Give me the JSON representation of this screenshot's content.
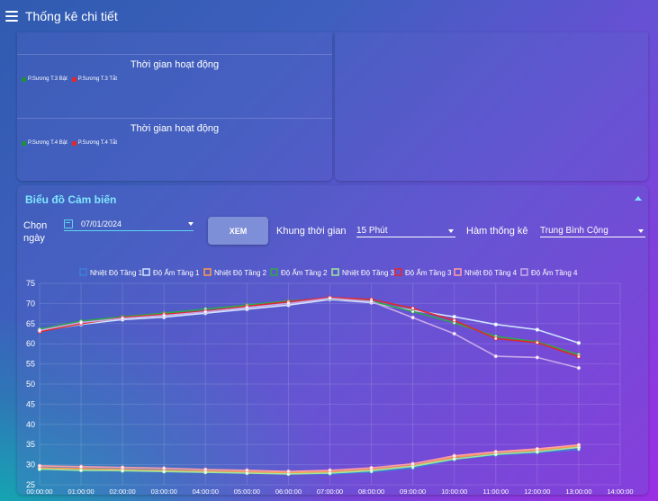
{
  "header": {
    "title": "Thống kê chi tiết",
    "menu_icon": "menu-icon"
  },
  "activity_charts": [
    {
      "title": "Thời gian hoạt động",
      "legend": [
        {
          "label": "P.Sương T.3 Bật",
          "color": "#1f8f3a"
        },
        {
          "label": "P.Sương T.3 Tắt",
          "color": "#e0282e"
        }
      ]
    },
    {
      "title": "Thời gian hoạt động",
      "legend": [
        {
          "label": "P.Sương T.4 Bật",
          "color": "#1f8f3a"
        },
        {
          "label": "P.Sương T.4 Tắt",
          "color": "#e0282e"
        }
      ]
    }
  ],
  "sensor_panel": {
    "title": "Biểu đồ Cảm biến",
    "date_label_line1": "Chọn",
    "date_label_line2": "ngày",
    "date_value": "07/01/2024",
    "view_button": "XEM",
    "timeframe_label": "Khung thời gian",
    "timeframe_value": "15 Phút",
    "function_label": "Hàm thống kê",
    "function_value": "Trung Bình Cộng"
  },
  "chart_data": {
    "type": "line",
    "x": [
      "00:00:00",
      "01:00:00",
      "02:00:00",
      "03:00:00",
      "04:00:00",
      "05:00:00",
      "06:00:00",
      "07:00:00",
      "08:00:00",
      "09:00:00",
      "10:00:00",
      "11:00:00",
      "12:00:00",
      "13:00:00",
      "14:00:00"
    ],
    "xlim": [
      0,
      14
    ],
    "ylim": [
      25,
      75
    ],
    "yticks": [
      25,
      30,
      35,
      40,
      45,
      50,
      55,
      60,
      65,
      70,
      75
    ],
    "grid": true,
    "legend_position": "top",
    "series": [
      {
        "name": "Nhiệt Độ Tầng 1",
        "color": "#3d7fd9",
        "points": [
          [
            0,
            29.5
          ],
          [
            1,
            29.2
          ],
          [
            2,
            29.0
          ],
          [
            3,
            28.8
          ],
          [
            4,
            28.5
          ],
          [
            5,
            28.2
          ],
          [
            6,
            27.9
          ],
          [
            7,
            27.7
          ],
          [
            8,
            28.2
          ],
          [
            9,
            29.2
          ],
          [
            10,
            31.3
          ],
          [
            11,
            32.4
          ],
          [
            12,
            33.0
          ],
          [
            13,
            33.8
          ]
        ]
      },
      {
        "name": "Độ Ẩm Tầng 1",
        "color": "#cfe3ff",
        "points": [
          [
            0,
            63.2
          ],
          [
            1,
            64.8
          ],
          [
            2,
            66.0
          ],
          [
            3,
            66.6
          ],
          [
            4,
            67.6
          ],
          [
            5,
            68.6
          ],
          [
            6,
            69.6
          ],
          [
            7,
            71.0
          ],
          [
            8,
            70.2
          ],
          [
            9,
            68.3
          ],
          [
            10,
            66.7
          ],
          [
            11,
            64.8
          ],
          [
            12,
            63.5
          ],
          [
            13,
            60.2
          ]
        ]
      },
      {
        "name": "Nhiệt Độ Tầng 2",
        "color": "#ff9a4a",
        "points": [
          [
            0,
            29.2
          ],
          [
            1,
            29.0
          ],
          [
            2,
            28.8
          ],
          [
            3,
            28.6
          ],
          [
            4,
            28.4
          ],
          [
            5,
            28.2
          ],
          [
            6,
            28.0
          ],
          [
            7,
            28.2
          ],
          [
            8,
            28.8
          ],
          [
            9,
            29.8
          ],
          [
            10,
            31.8
          ],
          [
            11,
            33.0
          ],
          [
            12,
            33.6
          ],
          [
            13,
            34.6
          ]
        ]
      },
      {
        "name": "Độ Ẩm Tầng 2",
        "color": "#2ea84a",
        "points": [
          [
            0,
            63.6
          ],
          [
            1,
            65.6
          ],
          [
            2,
            66.7
          ],
          [
            3,
            67.6
          ],
          [
            4,
            68.6
          ],
          [
            5,
            69.6
          ],
          [
            6,
            70.6
          ],
          [
            7,
            71.2
          ],
          [
            8,
            70.6
          ],
          [
            9,
            68.0
          ],
          [
            10,
            65.2
          ],
          [
            11,
            61.8
          ],
          [
            12,
            60.5
          ],
          [
            13,
            57.3
          ]
        ]
      },
      {
        "name": "Nhiệt Độ Tầng 3",
        "color": "#9be8a0",
        "points": [
          [
            0,
            28.9
          ],
          [
            1,
            28.6
          ],
          [
            2,
            28.5
          ],
          [
            3,
            28.3
          ],
          [
            4,
            28.1
          ],
          [
            5,
            27.9
          ],
          [
            6,
            27.7
          ],
          [
            7,
            27.9
          ],
          [
            8,
            28.5
          ],
          [
            9,
            29.6
          ],
          [
            10,
            31.4
          ],
          [
            11,
            32.6
          ],
          [
            12,
            33.2
          ],
          [
            13,
            34.3
          ]
        ]
      },
      {
        "name": "Độ Ẩm Tầng 3",
        "color": "#e0282e",
        "points": [
          [
            0,
            63.0
          ],
          [
            1,
            65.0
          ],
          [
            2,
            66.5
          ],
          [
            3,
            67.3
          ],
          [
            4,
            68.1
          ],
          [
            5,
            69.3
          ],
          [
            6,
            70.4
          ],
          [
            7,
            71.5
          ],
          [
            8,
            71.0
          ],
          [
            9,
            68.8
          ],
          [
            10,
            65.8
          ],
          [
            11,
            61.3
          ],
          [
            12,
            60.3
          ],
          [
            13,
            56.8
          ]
        ]
      },
      {
        "name": "Nhiệt Độ Tầng 4",
        "color": "#ff9ea8",
        "points": [
          [
            0,
            29.7
          ],
          [
            1,
            29.5
          ],
          [
            2,
            29.3
          ],
          [
            3,
            29.1
          ],
          [
            4,
            28.8
          ],
          [
            5,
            28.6
          ],
          [
            6,
            28.3
          ],
          [
            7,
            28.6
          ],
          [
            8,
            29.2
          ],
          [
            9,
            30.2
          ],
          [
            10,
            32.2
          ],
          [
            11,
            33.2
          ],
          [
            12,
            33.9
          ],
          [
            13,
            34.9
          ]
        ]
      },
      {
        "name": "Độ Ẩm Tầng 4",
        "color": "#c9a8ea",
        "points": [
          [
            0,
            63.3
          ],
          [
            1,
            65.3
          ],
          [
            2,
            66.3
          ],
          [
            3,
            67.0
          ],
          [
            4,
            67.9
          ],
          [
            5,
            69.0
          ],
          [
            6,
            70.0
          ],
          [
            7,
            71.3
          ],
          [
            8,
            70.5
          ],
          [
            9,
            66.5
          ],
          [
            10,
            62.5
          ],
          [
            11,
            56.9
          ],
          [
            12,
            56.6
          ],
          [
            13,
            54.0
          ]
        ]
      }
    ]
  }
}
